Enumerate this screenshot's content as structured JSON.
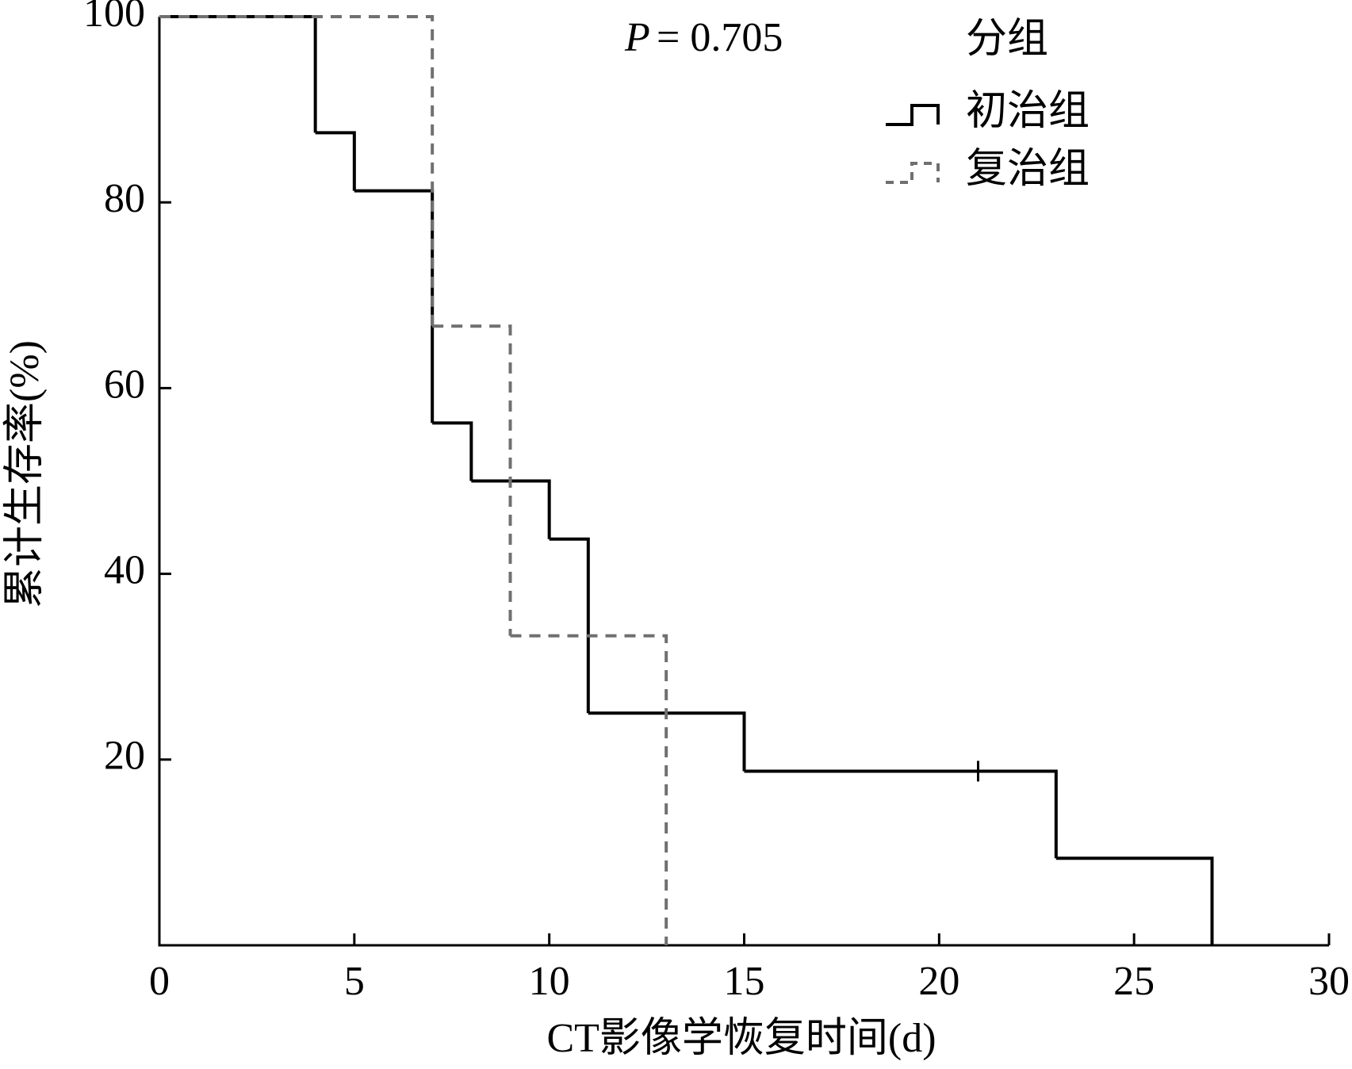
{
  "chart_data": {
    "type": "step",
    "annotation": {
      "symbol": "P",
      "text": "= 0.705"
    },
    "x_label": "CT影像学恢复时间(d)",
    "y_label": "累计生存率(%)",
    "legend_title": "分组",
    "legend": "top-right",
    "xlim": [
      0,
      30
    ],
    "xticks": [
      0,
      5,
      10,
      15,
      20,
      25,
      30
    ],
    "ylim": [
      0,
      100
    ],
    "yticks": [
      20,
      40,
      60,
      80,
      100
    ],
    "series": [
      {
        "name": "初治组",
        "color": "#000000",
        "dashed": false,
        "x": [
          0,
          4,
          5,
          7,
          8,
          10,
          11,
          15,
          23,
          27
        ],
        "values": [
          100,
          87.5,
          81.25,
          56.25,
          50,
          43.75,
          25,
          18.75,
          9.375,
          0
        ],
        "censored": {
          "x": [
            21
          ],
          "values": [
            18.75
          ]
        }
      },
      {
        "name": "复治组",
        "color": "#707070",
        "dashed": true,
        "x": [
          0,
          7,
          9,
          13
        ],
        "values": [
          100,
          66.67,
          33.33,
          0
        ]
      }
    ]
  }
}
